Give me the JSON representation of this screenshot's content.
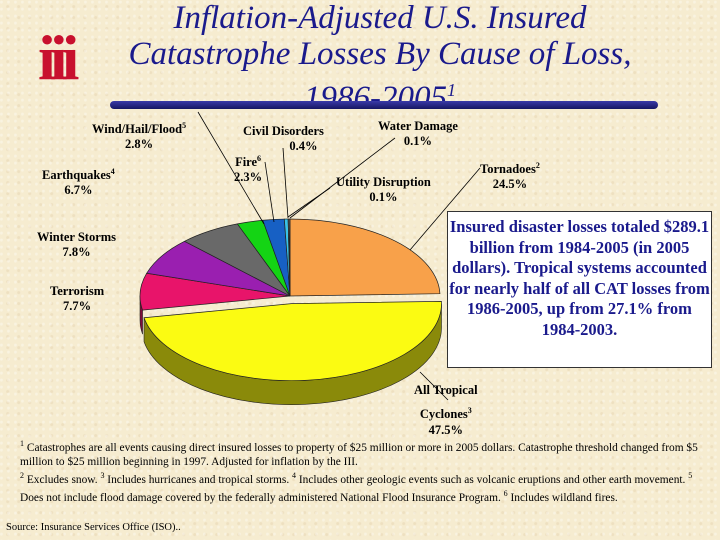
{
  "title": {
    "line1": "Inflation-Adjusted U.S. Insured",
    "line2": "Catastrophe Losses By Cause of Loss,",
    "line3": "1986-2005",
    "line3_sup": "1"
  },
  "logo_text": "iii",
  "chart_data": {
    "type": "pie",
    "title": "Inflation-Adjusted U.S. Insured Catastrophe Losses By Cause of Loss, 1986-2005",
    "slices": [
      {
        "label": "Tornadoes",
        "sup": "2",
        "value": 24.5,
        "value_text": "24.5%",
        "color": "#f8a14a"
      },
      {
        "label": "All Tropical Cyclones",
        "sup": "3",
        "value": 47.5,
        "value_text": "47.5%",
        "color": "#fbfb12"
      },
      {
        "label": "Terrorism",
        "sup": "",
        "value": 7.7,
        "value_text": "7.7%",
        "color": "#e8146a"
      },
      {
        "label": "Winter Storms",
        "sup": "",
        "value": 7.8,
        "value_text": "7.8%",
        "color": "#9a1fb0"
      },
      {
        "label": "Earthquakes",
        "sup": "4",
        "value": 6.7,
        "value_text": "6.7%",
        "color": "#696969"
      },
      {
        "label": "Wind/Hail/Flood",
        "sup": "5",
        "value": 2.8,
        "value_text": "2.8%",
        "color": "#14d414"
      },
      {
        "label": "Fire",
        "sup": "6",
        "value": 2.3,
        "value_text": "2.3%",
        "color": "#1760c4"
      },
      {
        "label": "Civil Disorders",
        "sup": "",
        "value": 0.4,
        "value_text": "0.4%",
        "color": "#3ac2e6"
      },
      {
        "label": "Water Damage",
        "sup": "",
        "value": 0.1,
        "value_text": "0.1%",
        "color": "#ffffff"
      },
      {
        "label": "Utility Disruption",
        "sup": "",
        "value": 0.1,
        "value_text": "0.1%",
        "color": "#c0c0c0"
      }
    ]
  },
  "labels": {
    "wind": {
      "name": "Wind/Hail/Flood",
      "sup": "5",
      "val": "2.8%"
    },
    "civil": {
      "name": "Civil Disorders",
      "val": "0.4%"
    },
    "water": {
      "name": "Water Damage",
      "val": "0.1%"
    },
    "fire": {
      "name": "Fire",
      "sup": "6",
      "val": "2.3%"
    },
    "tornado": {
      "name": "Tornadoes",
      "sup": "2",
      "val": "24.5%"
    },
    "earthquake": {
      "name": "Earthquakes",
      "sup": "4",
      "val": "6.7%"
    },
    "utility": {
      "name": "Utility Disruption",
      "val": "0.1%"
    },
    "winter": {
      "name": "Winter Storms",
      "val": "7.8%"
    },
    "terrorism": {
      "name": "Terrorism",
      "val": "7.7%"
    },
    "tropical": {
      "name1": "All Tropical",
      "name2": "Cyclones",
      "sup": "3",
      "val": "47.5%"
    }
  },
  "callout_text": "Insured disaster losses totaled $289.1 billion from 1984-2005 (in 2005 dollars). Tropical systems accounted for nearly half of all CAT losses from 1986-2005, up from 27.1% from 1984-2003.",
  "footnote": {
    "n1": "1",
    "t1": " Catastrophes are all events causing direct insured losses to property of $25 million or more in 2005 dollars. Catastrophe threshold changed from $5 million to $25 million beginning in 1997. Adjusted for inflation by the III.",
    "n2": "2",
    "t2": " Excludes snow. ",
    "n3": "3",
    "t3": " Includes hurricanes and tropical storms. ",
    "n4": "4",
    "t4": " Includes other geologic events such as volcanic eruptions and other earth movement. ",
    "n5": "5",
    "t5": " Does not include flood damage covered by the federally administered National Flood Insurance Program. ",
    "n6": "6",
    "t6": " Includes wildland fires."
  },
  "source": "Source: Insurance Services Office (ISO).."
}
